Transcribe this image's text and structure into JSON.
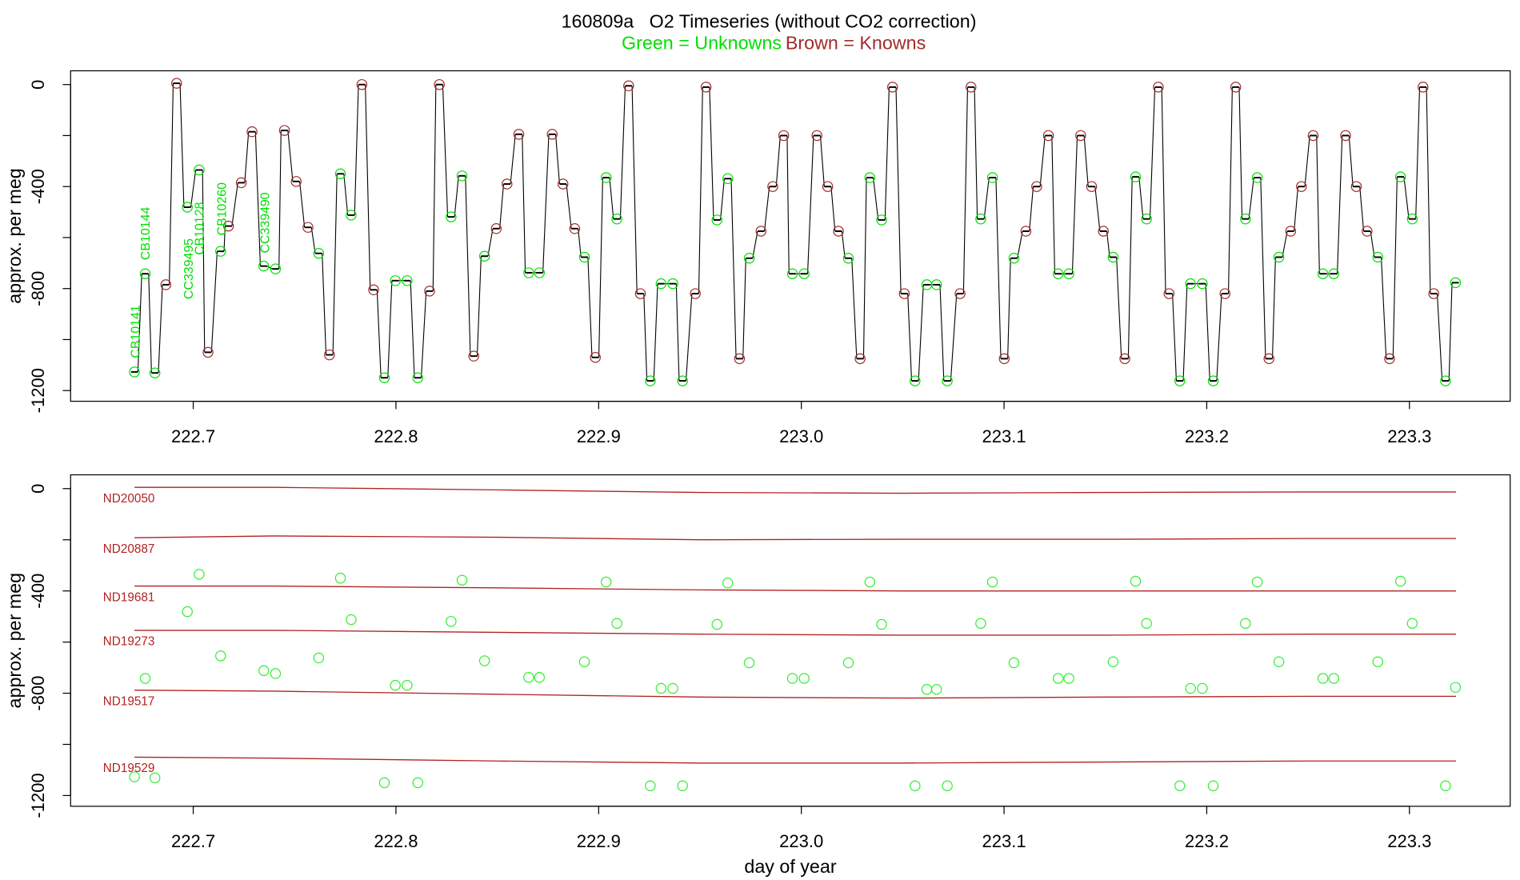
{
  "chart_data": [
    {
      "type": "line",
      "title": "160809a   O2 Timeseries (without CO2 correction)",
      "y_label": "approx. per meg",
      "legend": "top",
      "xlim": [
        222.6395,
        223.3497
      ],
      "ylim": [
        -1242,
        54
      ],
      "xticks": [
        222.7,
        222.8,
        222.9,
        {
          "value": 223,
          "label": "223.0"
        },
        223.1,
        223.2,
        223.3
      ],
      "yticks": [
        0,
        {
          "value": -200,
          "label": null
        },
        -400,
        {
          "value": -600,
          "label": null
        },
        -800,
        {
          "value": -1000,
          "label": null
        },
        -1200
      ],
      "annotations": [
        "CB10141",
        "CB10144",
        "CC339495",
        "CB10128",
        "CB10260",
        "CC339490"
      ],
      "annotation_color": "#00e000",
      "series": [
        {
          "type": "step",
          "color": "#000000",
          "x": [
            222.671,
            222.6763,
            222.6811,
            222.6865,
            222.6918,
            222.6971,
            222.7029,
            222.7073,
            222.7135,
            222.7174,
            222.7237,
            222.729,
            222.7348,
            222.7406,
            222.745,
            222.7508,
            222.7566,
            222.7619,
            222.7672,
            222.7726,
            222.7779,
            222.7832,
            222.789,
            222.7943,
            222.7997,
            222.8055,
            222.8108,
            222.8166,
            222.8214,
            222.8272,
            222.8326,
            222.8384,
            222.8437,
            222.8495,
            222.8548,
            222.8606,
            222.8655,
            222.8708,
            222.8771,
            222.8824,
            222.8882,
            222.893,
            222.8984,
            222.9037,
            222.909,
            222.9148,
            222.9206,
            222.9255,
            222.9308,
            222.9366,
            222.9414,
            222.9477,
            222.953,
            222.9584,
            222.9637,
            222.9695,
            222.9743,
            222.9801,
            222.9859,
            222.9913,
            222.9956,
            223.0014,
            223.0077,
            223.013,
            223.0183,
            223.0232,
            223.029,
            223.0338,
            223.0396,
            223.045,
            223.0508,
            223.0561,
            223.0619,
            223.0667,
            223.072,
            223.0783,
            223.0837,
            223.0885,
            223.0943,
            223.1001,
            223.1049,
            223.1108,
            223.1161,
            223.1219,
            223.1267,
            223.132,
            223.1378,
            223.1432,
            223.149,
            223.1538,
            223.1596,
            223.1649,
            223.1703,
            223.1761,
            223.1814,
            223.1867,
            223.192,
            223.1978,
            223.2032,
            223.209,
            223.2143,
            223.2191,
            223.2249,
            223.2307,
            223.2356,
            223.2414,
            223.2467,
            223.2525,
            223.2573,
            223.2627,
            223.2685,
            223.2738,
            223.2791,
            223.2844,
            223.2902,
            223.2956,
            223.3014,
            223.3067,
            223.312,
            223.3178,
            223.3227
          ],
          "values": [
            -1127,
            -742,
            -1131,
            -785,
            5,
            -481,
            -335,
            -1050,
            -654,
            -555,
            -385,
            -185,
            -712,
            -723,
            -180,
            -380,
            -560,
            -662,
            -1060,
            -350,
            -512,
            0,
            -805,
            -1150,
            -769,
            -769,
            -1150,
            -810,
            0,
            -519,
            -358,
            -1065,
            -673,
            -565,
            -390,
            -195,
            -738,
            -738,
            -195,
            -390,
            -565,
            -677,
            -1070,
            -365,
            -527,
            -5,
            -820,
            -1162,
            -781,
            -781,
            -1162,
            -820,
            -10,
            -531,
            -369,
            -1075,
            -681,
            -575,
            -400,
            -200,
            -742,
            -742,
            -200,
            -400,
            -575,
            -681,
            -1075,
            -365,
            -531,
            -10,
            -820,
            -1162,
            -785,
            -785,
            -1162,
            -820,
            -10,
            -527,
            -365,
            -1075,
            -681,
            -575,
            -400,
            -200,
            -742,
            -742,
            -200,
            -400,
            -575,
            -677,
            -1075,
            -362,
            -527,
            -10,
            -820,
            -1162,
            -781,
            -781,
            -1162,
            -820,
            -10,
            -527,
            -365,
            -1075,
            -677,
            -575,
            -400,
            -200,
            -742,
            -742,
            -200,
            -400,
            -575,
            -677,
            -1075,
            -362,
            -527,
            -10,
            -820,
            -1162,
            -777
          ]
        },
        {
          "type": "scatter",
          "name": "Green = Unknowns",
          "color": "#00e000",
          "x": [
            222.671,
            222.6763,
            222.6811,
            222.6971,
            222.7029,
            222.7135,
            222.7348,
            222.7406,
            222.7619,
            222.7726,
            222.7779,
            222.7943,
            222.7997,
            222.8055,
            222.8108,
            222.8272,
            222.8326,
            222.8437,
            222.8655,
            222.8708,
            222.893,
            222.9037,
            222.909,
            222.9255,
            222.9308,
            222.9366,
            222.9414,
            222.9584,
            222.9637,
            222.9743,
            222.9956,
            223.0014,
            223.0232,
            223.0338,
            223.0396,
            223.0561,
            223.0619,
            223.0667,
            223.072,
            223.0885,
            223.0943,
            223.1049,
            223.1267,
            223.132,
            223.1538,
            223.1649,
            223.1703,
            223.1867,
            223.192,
            223.1978,
            223.2032,
            223.2191,
            223.2249,
            223.2356,
            223.2573,
            223.2627,
            223.2844,
            223.2956,
            223.3014,
            223.3178,
            223.3227
          ],
          "values": [
            -1127,
            -742,
            -1131,
            -481,
            -335,
            -654,
            -712,
            -723,
            -662,
            -350,
            -512,
            -1150,
            -769,
            -769,
            -1150,
            -519,
            -358,
            -673,
            -738,
            -738,
            -677,
            -365,
            -527,
            -1162,
            -781,
            -781,
            -1162,
            -531,
            -369,
            -681,
            -742,
            -742,
            -681,
            -365,
            -531,
            -1162,
            -785,
            -785,
            -1162,
            -527,
            -365,
            -681,
            -742,
            -742,
            -677,
            -362,
            -527,
            -1162,
            -781,
            -781,
            -1162,
            -527,
            -365,
            -677,
            -742,
            -742,
            -677,
            -362,
            -527,
            -1162,
            -777
          ]
        },
        {
          "type": "scatter",
          "name": "Brown = Knowns",
          "color": "#a52a2a",
          "x": [
            222.6865,
            222.6918,
            222.7073,
            222.7174,
            222.7237,
            222.729,
            222.745,
            222.7508,
            222.7566,
            222.7672,
            222.7832,
            222.789,
            222.8166,
            222.8214,
            222.8384,
            222.8495,
            222.8548,
            222.8606,
            222.8771,
            222.8824,
            222.8882,
            222.8984,
            222.9148,
            222.9206,
            222.9477,
            222.953,
            222.9695,
            222.9801,
            222.9859,
            222.9913,
            223.0077,
            223.013,
            223.0183,
            223.029,
            223.045,
            223.0508,
            223.0783,
            223.0837,
            223.1001,
            223.1108,
            223.1161,
            223.1219,
            223.1378,
            223.1432,
            223.149,
            223.1596,
            223.1761,
            223.1814,
            223.209,
            223.2143,
            223.2307,
            223.2414,
            223.2467,
            223.2525,
            223.2685,
            223.2738,
            223.2791,
            223.2902,
            223.3067,
            223.312
          ],
          "values": [
            -785,
            5,
            -1050,
            -555,
            -385,
            -185,
            -180,
            -380,
            -560,
            -1060,
            0,
            -805,
            -810,
            0,
            -1065,
            -565,
            -390,
            -195,
            -195,
            -390,
            -565,
            -1070,
            -5,
            -820,
            -820,
            -10,
            -1075,
            -575,
            -400,
            -200,
            -200,
            -400,
            -575,
            -1075,
            -10,
            -820,
            -820,
            -10,
            -1075,
            -575,
            -400,
            -200,
            -200,
            -400,
            -575,
            -1075,
            -10,
            -820,
            -820,
            -10,
            -1075,
            -575,
            -400,
            -200,
            -200,
            -400,
            -575,
            -1075,
            -10,
            -820
          ]
        }
      ]
    },
    {
      "type": "scatter",
      "x_label": "day of year",
      "y_label": "approx. per meg",
      "xlim": [
        222.6395,
        223.3497
      ],
      "ylim": [
        -1242,
        54
      ],
      "xticks": [
        222.7,
        222.8,
        222.9,
        {
          "value": 223,
          "label": "223.0"
        },
        223.1,
        223.2,
        223.3
      ],
      "yticks": [
        0,
        {
          "value": -200,
          "label": null
        },
        -400,
        {
          "value": -600,
          "label": null
        },
        -800,
        {
          "value": -1000,
          "label": null
        },
        -1200
      ],
      "series": [
        {
          "type": "line",
          "name": "ND20050",
          "color": "#b22222",
          "x": [
            222.671,
            222.74,
            222.85,
            222.95,
            223.05,
            223.15,
            223.25,
            223.323
          ],
          "values": [
            5,
            5,
            -5,
            -15,
            -18,
            -15,
            -13,
            -13
          ]
        },
        {
          "type": "line",
          "name": "ND20887",
          "color": "#b22222",
          "x": [
            222.671,
            222.74,
            222.85,
            222.95,
            223.05,
            223.15,
            223.25,
            223.323
          ],
          "values": [
            -192,
            -185,
            -190,
            -200,
            -198,
            -198,
            -195,
            -195
          ]
        },
        {
          "type": "line",
          "name": "ND19681",
          "color": "#b22222",
          "x": [
            222.671,
            222.74,
            222.85,
            222.95,
            223.05,
            223.15,
            223.25,
            223.323
          ],
          "values": [
            -381,
            -381,
            -388,
            -396,
            -400,
            -400,
            -400,
            -400
          ]
        },
        {
          "type": "line",
          "name": "ND19273",
          "color": "#b22222",
          "x": [
            222.671,
            222.74,
            222.85,
            222.95,
            223.05,
            223.15,
            223.25,
            223.323
          ],
          "values": [
            -554,
            -554,
            -562,
            -569,
            -573,
            -573,
            -569,
            -569
          ]
        },
        {
          "type": "line",
          "name": "ND19517",
          "color": "#b22222",
          "x": [
            222.671,
            222.74,
            222.85,
            222.95,
            223.05,
            223.15,
            223.25,
            223.323
          ],
          "values": [
            -788,
            -792,
            -804,
            -815,
            -819,
            -815,
            -812,
            -812
          ]
        },
        {
          "type": "line",
          "name": "ND19529",
          "color": "#b22222",
          "x": [
            222.671,
            222.74,
            222.85,
            222.95,
            223.05,
            223.15,
            223.25,
            223.323
          ],
          "values": [
            -1050,
            -1054,
            -1065,
            -1073,
            -1073,
            -1069,
            -1065,
            -1065
          ]
        },
        {
          "type": "scatter",
          "color": "#33ee33",
          "x": [
            222.671,
            222.6763,
            222.6811,
            222.6971,
            222.7029,
            222.7135,
            222.7348,
            222.7406,
            222.7619,
            222.7726,
            222.7779,
            222.7943,
            222.7997,
            222.8055,
            222.8108,
            222.8272,
            222.8326,
            222.8437,
            222.8655,
            222.8708,
            222.893,
            222.9037,
            222.909,
            222.9255,
            222.9308,
            222.9366,
            222.9414,
            222.9584,
            222.9637,
            222.9743,
            222.9956,
            223.0014,
            223.0232,
            223.0338,
            223.0396,
            223.0561,
            223.0619,
            223.0667,
            223.072,
            223.0885,
            223.0943,
            223.1049,
            223.1267,
            223.132,
            223.1538,
            223.1649,
            223.1703,
            223.1867,
            223.192,
            223.1978,
            223.2032,
            223.2191,
            223.2249,
            223.2356,
            223.2573,
            223.2627,
            223.2844,
            223.2956,
            223.3014,
            223.3178,
            223.3227
          ],
          "values": [
            -1127,
            -742,
            -1131,
            -481,
            -335,
            -654,
            -712,
            -723,
            -662,
            -350,
            -512,
            -1150,
            -769,
            -769,
            -1150,
            -519,
            -358,
            -673,
            -738,
            -738,
            -677,
            -365,
            -527,
            -1162,
            -781,
            -781,
            -1162,
            -531,
            -369,
            -681,
            -742,
            -742,
            -681,
            -365,
            -531,
            -1162,
            -785,
            -785,
            -1162,
            -527,
            -365,
            -681,
            -742,
            -742,
            -677,
            -362,
            -527,
            -1162,
            -781,
            -781,
            -1162,
            -527,
            -365,
            -677,
            -742,
            -742,
            -677,
            -362,
            -527,
            -1162,
            -777
          ]
        }
      ]
    }
  ]
}
